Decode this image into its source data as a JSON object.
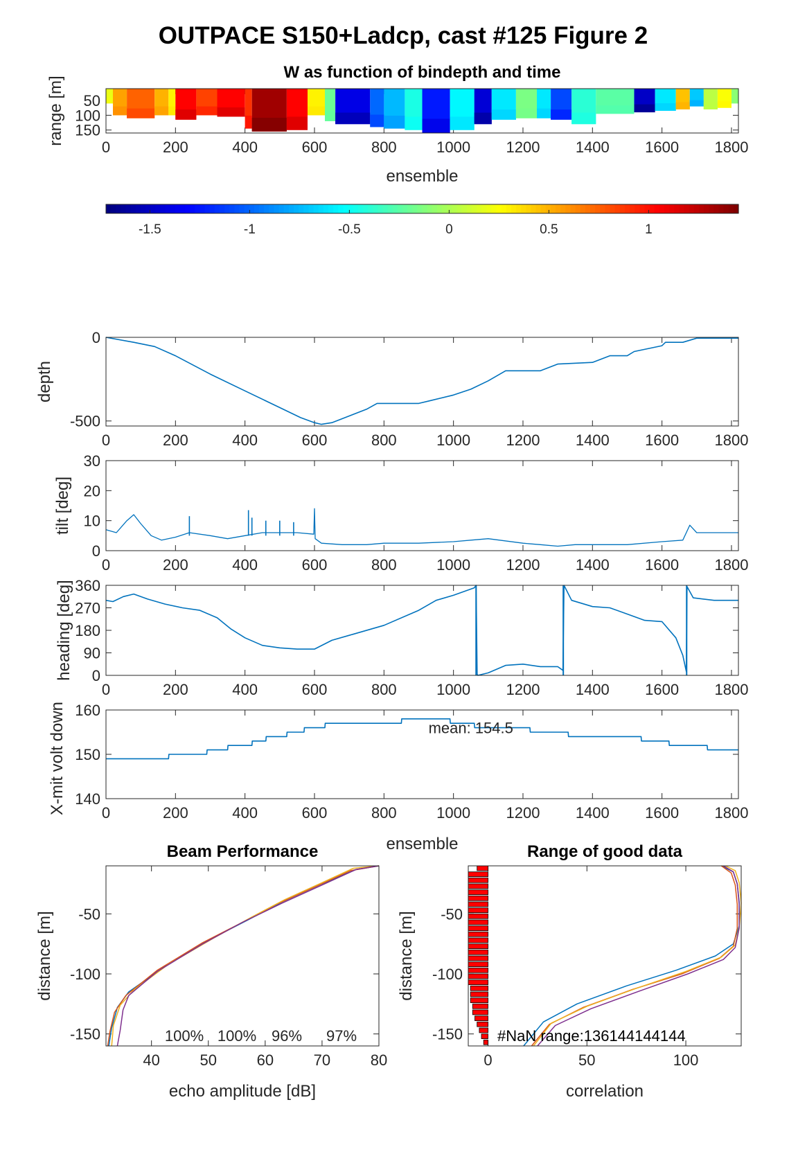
{
  "figure": {
    "title": "OUTPACE S150+Ladcp, cast #125 Figure 2"
  },
  "chart_data": [
    {
      "id": "w_heatmap",
      "type": "heatmap",
      "title": "W as function of bindepth and time",
      "xlabel": "ensemble",
      "ylabel": "range [m]",
      "xlim": [
        0,
        1820
      ],
      "ylim": [
        160,
        10
      ],
      "xticks": [
        0,
        200,
        400,
        600,
        800,
        1000,
        1200,
        1400,
        1600,
        1800
      ],
      "yticks": [
        50,
        100,
        150
      ],
      "grid": false,
      "colormap": "jet",
      "clim": [
        -1.72,
        1.45
      ],
      "colorbar": {
        "ticks": [
          -1.5,
          -1,
          -0.5,
          0,
          0.5,
          1
        ],
        "tick_labels": [
          "-1.5",
          "-1",
          "-0.5",
          "0",
          "0.5",
          "1"
        ]
      },
      "segments": [
        {
          "x_start": 0,
          "x_end": 20,
          "w": 0.2,
          "max_range": 60
        },
        {
          "x_start": 20,
          "x_end": 60,
          "w": 0.55,
          "max_range": 100
        },
        {
          "x_start": 60,
          "x_end": 140,
          "w": 0.75,
          "max_range": 110
        },
        {
          "x_start": 140,
          "x_end": 180,
          "w": 0.5,
          "max_range": 100
        },
        {
          "x_start": 180,
          "x_end": 200,
          "w": 0.3,
          "max_range": 100
        },
        {
          "x_start": 200,
          "x_end": 260,
          "w": 1.05,
          "max_range": 115
        },
        {
          "x_start": 260,
          "x_end": 320,
          "w": 0.85,
          "max_range": 100
        },
        {
          "x_start": 320,
          "x_end": 400,
          "w": 1.05,
          "max_range": 105
        },
        {
          "x_start": 400,
          "x_end": 420,
          "w": 0.9,
          "max_range": 145
        },
        {
          "x_start": 420,
          "x_end": 520,
          "w": 1.35,
          "max_range": 155
        },
        {
          "x_start": 520,
          "x_end": 580,
          "w": 1.05,
          "max_range": 150
        },
        {
          "x_start": 580,
          "x_end": 630,
          "w": 0.3,
          "max_range": 100
        },
        {
          "x_start": 630,
          "x_end": 660,
          "w": -0.2,
          "max_range": 120
        },
        {
          "x_start": 660,
          "x_end": 760,
          "w": -1.4,
          "max_range": 130
        },
        {
          "x_start": 760,
          "x_end": 800,
          "w": -1.0,
          "max_range": 140
        },
        {
          "x_start": 800,
          "x_end": 860,
          "w": -0.75,
          "max_range": 145
        },
        {
          "x_start": 860,
          "x_end": 910,
          "w": -0.45,
          "max_range": 150
        },
        {
          "x_start": 910,
          "x_end": 990,
          "w": -1.25,
          "max_range": 160
        },
        {
          "x_start": 990,
          "x_end": 1060,
          "w": -0.55,
          "max_range": 150
        },
        {
          "x_start": 1060,
          "x_end": 1110,
          "w": -1.45,
          "max_range": 130
        },
        {
          "x_start": 1110,
          "x_end": 1180,
          "w": -0.6,
          "max_range": 115
        },
        {
          "x_start": 1180,
          "x_end": 1240,
          "w": -0.15,
          "max_range": 110
        },
        {
          "x_start": 1240,
          "x_end": 1280,
          "w": -0.6,
          "max_range": 110
        },
        {
          "x_start": 1280,
          "x_end": 1340,
          "w": -1.1,
          "max_range": 115
        },
        {
          "x_start": 1340,
          "x_end": 1410,
          "w": -0.4,
          "max_range": 130
        },
        {
          "x_start": 1410,
          "x_end": 1520,
          "w": -0.25,
          "max_range": 95
        },
        {
          "x_start": 1520,
          "x_end": 1580,
          "w": -1.5,
          "max_range": 90
        },
        {
          "x_start": 1580,
          "x_end": 1640,
          "w": -0.6,
          "max_range": 85
        },
        {
          "x_start": 1640,
          "x_end": 1680,
          "w": 0.45,
          "max_range": 80
        },
        {
          "x_start": 1680,
          "x_end": 1720,
          "w": -0.7,
          "max_range": 70
        },
        {
          "x_start": 1720,
          "x_end": 1760,
          "w": 0.05,
          "max_range": 80
        },
        {
          "x_start": 1760,
          "x_end": 1800,
          "w": 0.25,
          "max_range": 75
        },
        {
          "x_start": 1800,
          "x_end": 1820,
          "w": -0.1,
          "max_range": 60
        }
      ]
    },
    {
      "id": "depth",
      "type": "line",
      "ylabel": "depth",
      "xlim": [
        0,
        1820
      ],
      "ylim": [
        -530,
        0
      ],
      "xticks": [
        0,
        200,
        400,
        600,
        800,
        1000,
        1200,
        1400,
        1600,
        1800
      ],
      "yticks": [
        -500,
        0
      ],
      "grid": false,
      "x": [
        0,
        80,
        140,
        200,
        300,
        400,
        500,
        560,
        600,
        620,
        650,
        700,
        750,
        780,
        900,
        930,
        1000,
        1050,
        1100,
        1150,
        1250,
        1300,
        1400,
        1450,
        1500,
        1520,
        1600,
        1610,
        1660,
        1700,
        1800,
        1820
      ],
      "y": [
        0,
        -30,
        -55,
        -110,
        -220,
        -320,
        -420,
        -480,
        -510,
        -520,
        -510,
        -470,
        -430,
        -395,
        -395,
        -380,
        -345,
        -310,
        -260,
        -200,
        -200,
        -160,
        -150,
        -110,
        -110,
        -85,
        -50,
        -30,
        -30,
        -5,
        -5,
        -5
      ]
    },
    {
      "id": "tilt",
      "type": "line",
      "ylabel": "tilt [deg]",
      "xlim": [
        0,
        1820
      ],
      "ylim": [
        0,
        30
      ],
      "xticks": [
        0,
        200,
        400,
        600,
        800,
        1000,
        1200,
        1400,
        1600,
        1800
      ],
      "yticks": [
        0,
        10,
        20,
        30
      ],
      "grid": false,
      "x": [
        0,
        30,
        60,
        80,
        100,
        130,
        160,
        200,
        240,
        300,
        350,
        400,
        450,
        500,
        550,
        598,
        600,
        602,
        620,
        680,
        750,
        800,
        900,
        1000,
        1050,
        1100,
        1200,
        1250,
        1300,
        1350,
        1400,
        1500,
        1600,
        1660,
        1680,
        1700,
        1750,
        1820
      ],
      "y": [
        7,
        6,
        10,
        12,
        9,
        5,
        3.5,
        4.5,
        6,
        5,
        4,
        5,
        6,
        6,
        6,
        5.5,
        14,
        4,
        2.5,
        2,
        2,
        2.5,
        2.5,
        3,
        3.5,
        4,
        2.5,
        2,
        1.5,
        2,
        2,
        2,
        3,
        3.5,
        8.5,
        6,
        6,
        6
      ],
      "spikes": [
        {
          "x": 240,
          "y": 11.5
        },
        {
          "x": 410,
          "y": 13.5
        },
        {
          "x": 420,
          "y": 11
        },
        {
          "x": 460,
          "y": 10
        },
        {
          "x": 500,
          "y": 10
        },
        {
          "x": 540,
          "y": 9.5
        }
      ]
    },
    {
      "id": "heading",
      "type": "line",
      "ylabel": "heading [deg]",
      "xlim": [
        0,
        1820
      ],
      "ylim": [
        0,
        360
      ],
      "xticks": [
        0,
        200,
        400,
        600,
        800,
        1000,
        1200,
        1400,
        1600,
        1800
      ],
      "yticks": [
        0,
        90,
        180,
        270,
        360
      ],
      "grid": false,
      "x": [
        0,
        20,
        50,
        80,
        120,
        170,
        220,
        270,
        320,
        360,
        400,
        450,
        500,
        550,
        600,
        650,
        700,
        800,
        900,
        950,
        1000,
        1060,
        1065,
        1068,
        1070,
        1100,
        1150,
        1200,
        1250,
        1300,
        1315,
        1318,
        1340,
        1400,
        1450,
        1500,
        1550,
        1600,
        1640,
        1660,
        1670,
        1672,
        1690,
        1750,
        1820
      ],
      "y": [
        300,
        295,
        315,
        325,
        305,
        285,
        270,
        260,
        230,
        185,
        150,
        120,
        110,
        105,
        105,
        140,
        160,
        200,
        260,
        300,
        320,
        350,
        360,
        5,
        0,
        10,
        40,
        45,
        35,
        35,
        20,
        360,
        300,
        275,
        270,
        245,
        220,
        215,
        150,
        80,
        15,
        355,
        310,
        300,
        300
      ],
      "wrap_events": [
        {
          "x": 1065,
          "from": 360,
          "to": 0
        },
        {
          "x": 1316,
          "from": 0,
          "to": 360
        },
        {
          "x": 1671,
          "from": 0,
          "to": 360
        }
      ]
    },
    {
      "id": "xmit_volt",
      "type": "line",
      "ylabel": "X-mit volt down",
      "xlabel": "ensemble",
      "xlim": [
        0,
        1820
      ],
      "ylim": [
        140,
        160
      ],
      "xticks": [
        0,
        200,
        400,
        600,
        800,
        1000,
        1200,
        1400,
        1600,
        1800
      ],
      "yticks": [
        140,
        150,
        160
      ],
      "grid": false,
      "annotation": "mean: 154.5",
      "x": [
        0,
        180,
        181,
        290,
        291,
        350,
        351,
        420,
        421,
        460,
        461,
        520,
        521,
        570,
        571,
        630,
        631,
        850,
        851,
        990,
        991,
        1060,
        1061,
        1220,
        1221,
        1250,
        1251,
        1330,
        1331,
        1540,
        1541,
        1620,
        1621,
        1730,
        1731,
        1820
      ],
      "y": [
        149,
        149,
        150,
        150,
        151,
        151,
        152,
        152,
        153,
        153,
        154,
        154,
        155,
        155,
        156,
        156,
        157,
        157,
        158,
        158,
        157,
        157,
        156,
        156,
        155,
        155,
        155,
        155,
        154,
        154,
        153,
        153,
        152,
        152,
        151,
        151
      ]
    },
    {
      "id": "beam_performance",
      "type": "line",
      "title": "Beam Performance",
      "xlabel": "echo amplitude [dB]",
      "ylabel": "distance [m]",
      "xlim": [
        32,
        80
      ],
      "ylim": [
        -160,
        -10
      ],
      "xticks": [
        40,
        50,
        60,
        70,
        80
      ],
      "yticks": [
        -150,
        -100,
        -50
      ],
      "grid": false,
      "annotations": [
        "100%",
        "100%",
        "96%",
        "97%"
      ],
      "series": [
        {
          "color": "#0072BD",
          "x": [
            80,
            76,
            70,
            63,
            57,
            50,
            42,
            36,
            34,
            33,
            32.5
          ],
          "y": [
            -10,
            -13,
            -25,
            -40,
            -55,
            -72,
            -95,
            -115,
            -128,
            -145,
            -160
          ]
        },
        {
          "color": "#D95319",
          "x": [
            80,
            75,
            69,
            62,
            56,
            49,
            41,
            35.5,
            33.5,
            32.7,
            32.3
          ],
          "y": [
            -10,
            -14,
            -27,
            -42,
            -57,
            -74,
            -97,
            -118,
            -132,
            -148,
            -160
          ]
        },
        {
          "color": "#EDB120",
          "x": [
            80,
            75.5,
            70,
            63.5,
            57.5,
            51,
            43,
            37,
            34.5,
            33.3,
            33
          ],
          "y": [
            -10,
            -12,
            -24,
            -38,
            -53,
            -70,
            -92,
            -113,
            -126,
            -143,
            -160
          ]
        },
        {
          "color": "#7E2F8E",
          "x": [
            80,
            76,
            70,
            63,
            56,
            49,
            41,
            36,
            35,
            34.5,
            34
          ],
          "y": [
            -10,
            -13,
            -26,
            -41,
            -57,
            -75,
            -98,
            -118,
            -130,
            -147,
            -160
          ]
        }
      ]
    },
    {
      "id": "range_good_data",
      "type": "line",
      "title": "Range of good data",
      "xlabel": "correlation",
      "ylabel": "distance [m]",
      "xlim": [
        -10,
        128
      ],
      "ylim": [
        -160,
        -10
      ],
      "xticks": [
        0,
        50,
        100
      ],
      "yticks": [
        -150,
        -100,
        -50
      ],
      "grid": false,
      "annotation": "#NaN range:136144144144",
      "histogram": {
        "color": "#FF0000",
        "y": [
          -12,
          -17,
          -22,
          -27,
          -32,
          -37,
          -42,
          -47,
          -52,
          -57,
          -62,
          -67,
          -72,
          -77,
          -82,
          -87,
          -92,
          -97,
          -102,
          -107,
          -112,
          -117,
          -122,
          -127,
          -132,
          -137,
          -142,
          -147,
          -152,
          -157
        ],
        "counts": [
          5,
          9,
          9,
          9,
          9,
          9,
          9,
          9,
          9,
          9,
          9,
          9,
          9,
          9,
          9,
          9,
          9,
          9,
          9,
          9,
          8,
          8,
          8,
          7,
          7,
          6,
          5,
          4,
          3,
          2
        ]
      },
      "series": [
        {
          "color": "#0072BD",
          "x": [
            118,
            124,
            126,
            127,
            127,
            124,
            115,
            95,
            70,
            45,
            28,
            18
          ],
          "y": [
            -10,
            -15,
            -25,
            -40,
            -60,
            -75,
            -85,
            -97,
            -110,
            -125,
            -140,
            -160
          ]
        },
        {
          "color": "#D95319",
          "x": [
            118,
            123,
            125,
            126,
            126,
            124,
            117,
            98,
            73,
            48,
            31,
            22
          ],
          "y": [
            -10,
            -16,
            -26,
            -42,
            -62,
            -77,
            -87,
            -100,
            -113,
            -128,
            -142,
            -160
          ]
        },
        {
          "color": "#EDB120",
          "x": [
            120,
            125,
            127,
            128,
            127,
            125,
            118,
            100,
            75,
            50,
            32,
            23
          ],
          "y": [
            -10,
            -14,
            -24,
            -41,
            -61,
            -76,
            -86,
            -98,
            -112,
            -127,
            -141,
            -160
          ]
        },
        {
          "color": "#7E2F8E",
          "x": [
            119,
            124,
            126,
            127,
            127,
            125,
            119,
            101,
            77,
            52,
            34,
            25
          ],
          "y": [
            -10,
            -15,
            -25,
            -42,
            -62,
            -78,
            -88,
            -100,
            -114,
            -129,
            -143,
            -160
          ]
        }
      ]
    }
  ]
}
